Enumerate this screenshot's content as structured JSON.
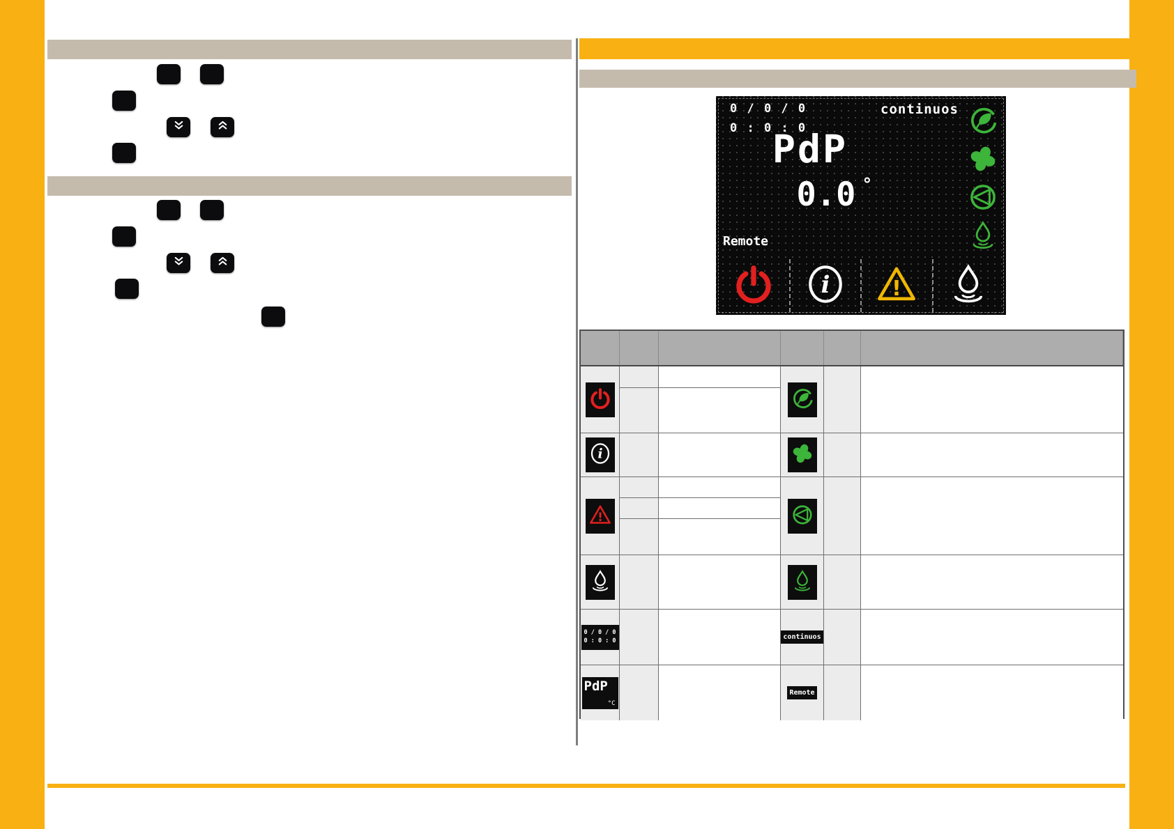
{
  "colors": {
    "orange": "#F8B012",
    "tan": "#C5BBAD",
    "green": "#3DB43A",
    "red": "#E2201F",
    "yellow": "#EFB700",
    "white": "#FFFFFF",
    "table_header_gray": "#ADADAD",
    "cell_gray": "#ECECEC",
    "button_black": "#0C0C0E"
  },
  "left_panel": {
    "section1": {
      "buttons": [
        {
          "pos": "s1-b1",
          "icon": "blank"
        },
        {
          "pos": "s1-b2",
          "icon": "blank"
        },
        {
          "pos": "s1-b3",
          "icon": "blank"
        },
        {
          "pos": "s1-chev-down",
          "icon": "chevron-double-down"
        },
        {
          "pos": "s1-chev-up",
          "icon": "chevron-double-up"
        },
        {
          "pos": "s1-b4",
          "icon": "blank"
        }
      ]
    },
    "section2": {
      "buttons": [
        {
          "pos": "s2-b1",
          "icon": "blank"
        },
        {
          "pos": "s2-b2",
          "icon": "blank"
        },
        {
          "pos": "s2-b3",
          "icon": "blank"
        },
        {
          "pos": "s2-chev-down",
          "icon": "chevron-double-down"
        },
        {
          "pos": "s2-chev-up",
          "icon": "chevron-double-up"
        },
        {
          "pos": "s2-b4",
          "icon": "blank"
        },
        {
          "pos": "s2-b5",
          "icon": "blank"
        }
      ]
    }
  },
  "display": {
    "date": "0 / 0 / 0",
    "time": "0 : 0 : 0",
    "mode": "continuos",
    "title": "PdP",
    "value": "0.0",
    "degree": "°",
    "remote": "Remote",
    "buttons": [
      {
        "icon": "power",
        "color": "#E2201F"
      },
      {
        "icon": "info",
        "color": "#FFFFFF"
      },
      {
        "icon": "warning",
        "color": "#EFB700"
      },
      {
        "icon": "droplet-ripple",
        "color": "#FFFFFF"
      }
    ],
    "status_icons": [
      {
        "icon": "leaf",
        "color": "#3DB43A"
      },
      {
        "icon": "fan",
        "color": "#3DB43A"
      },
      {
        "icon": "pump",
        "color": "#3DB43A"
      },
      {
        "icon": "droplet-ripple",
        "color": "#3DB43A"
      }
    ]
  },
  "table": {
    "header_cells": [
      "",
      "",
      "",
      "",
      "",
      ""
    ],
    "rows": [
      {
        "left": {
          "type": "icon",
          "icon": "power",
          "color": "#E2201F"
        },
        "left_subrows": 2,
        "right": {
          "type": "icon",
          "icon": "leaf",
          "color": "#3DB43A"
        }
      },
      {
        "left": {
          "type": "icon",
          "icon": "info",
          "color": "#FFFFFF"
        },
        "left_subrows": 1,
        "right": {
          "type": "icon",
          "icon": "fan",
          "color": "#3DB43A"
        }
      },
      {
        "left": {
          "type": "icon",
          "icon": "warning",
          "color": "#E2201F"
        },
        "left_subrows": 3,
        "right": {
          "type": "icon",
          "icon": "pump",
          "color": "#3DB43A"
        }
      },
      {
        "left": {
          "type": "icon",
          "icon": "droplet-ripple",
          "color": "#FFFFFF"
        },
        "left_subrows": 1,
        "right": {
          "type": "icon",
          "icon": "droplet-ripple",
          "color": "#3DB43A"
        }
      },
      {
        "left": {
          "type": "lcd",
          "line1": "0 / 0 / 0",
          "line2": "0 : 0 : 0"
        },
        "left_subrows": 1,
        "right": {
          "type": "badge",
          "text": "continuos"
        }
      },
      {
        "left": {
          "type": "lcd-big",
          "text": "PdP",
          "unit": "°C"
        },
        "left_subrows": 1,
        "right": {
          "type": "badge",
          "text": "Remote"
        }
      }
    ]
  }
}
